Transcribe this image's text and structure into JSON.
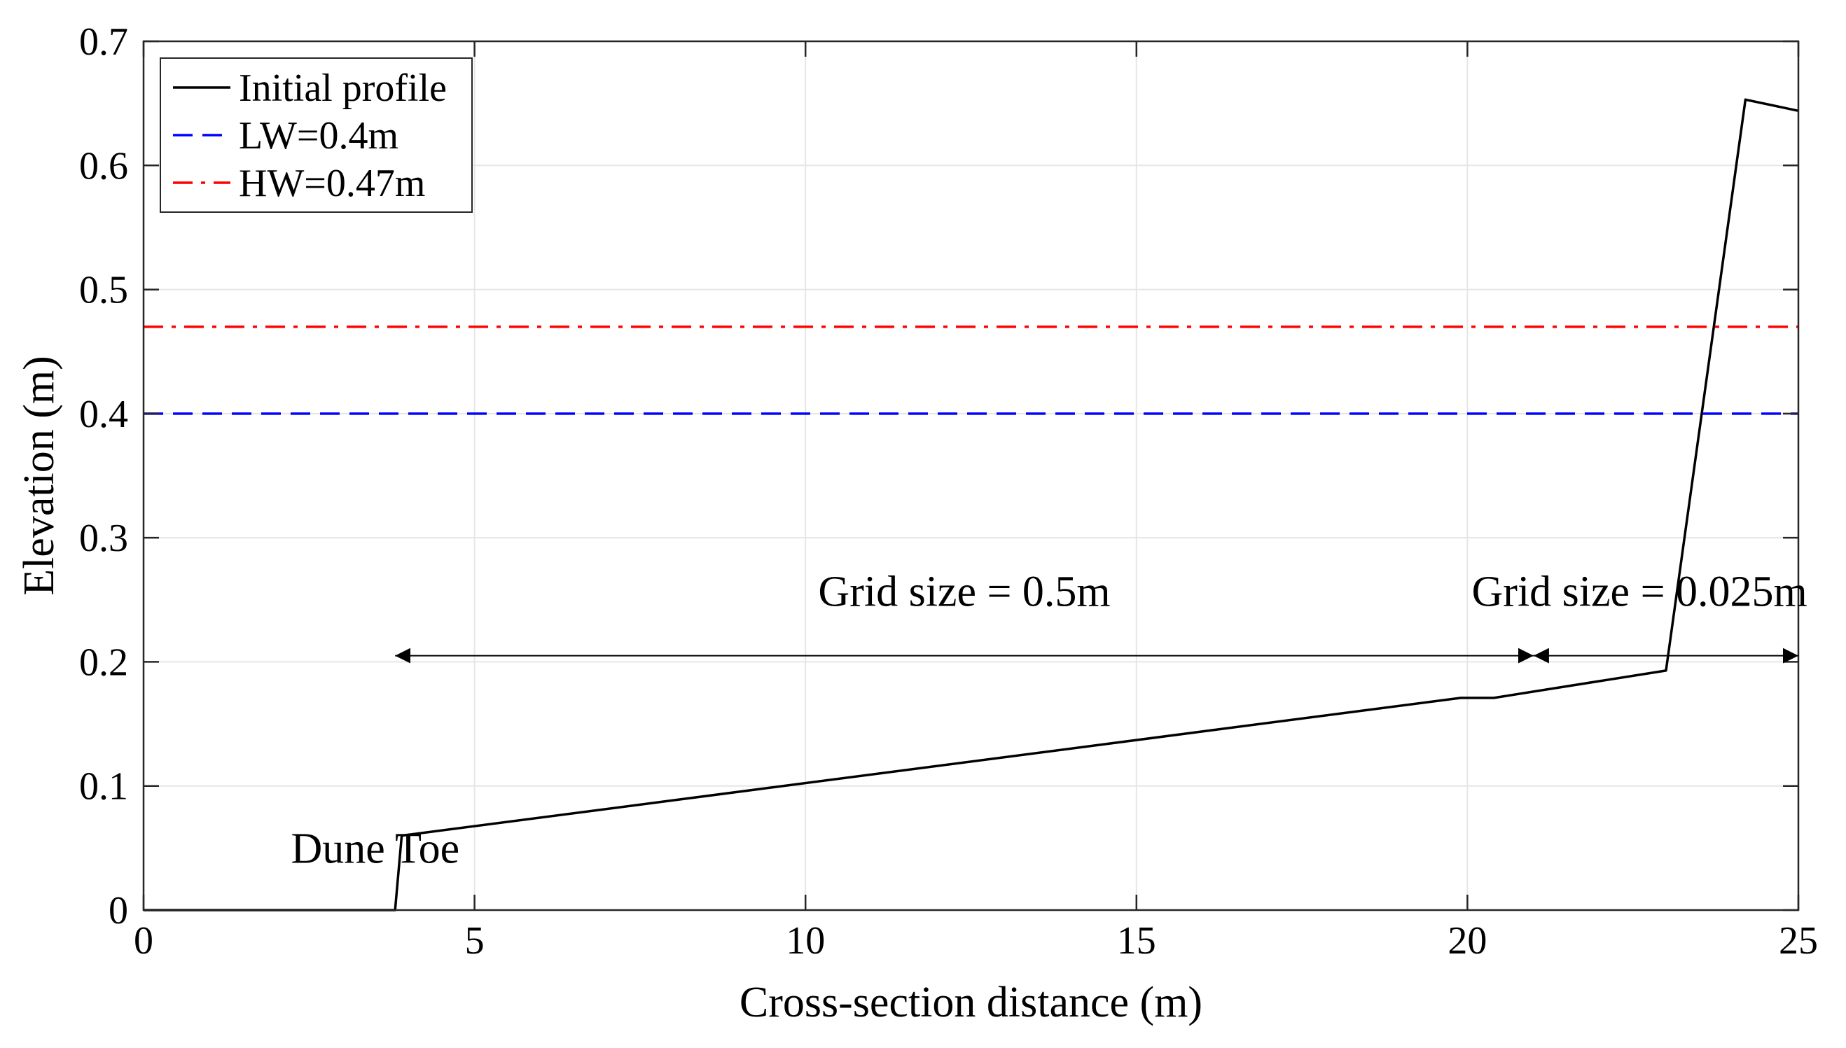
{
  "chart_data": {
    "type": "line",
    "title": "",
    "xlabel": "Cross-section distance (m)",
    "ylabel": "Elevation (m)",
    "xlim": [
      0,
      25
    ],
    "ylim": [
      0,
      0.7
    ],
    "xticks": [
      0,
      5,
      10,
      15,
      20,
      25
    ],
    "xtick_labels": [
      "0",
      "5",
      "10",
      "15",
      "20",
      "25"
    ],
    "yticks": [
      0,
      0.1,
      0.2,
      0.3,
      0.4,
      0.5,
      0.6,
      0.7
    ],
    "ytick_labels": [
      "0",
      "0.1",
      "0.2",
      "0.3",
      "0.4",
      "0.5",
      "0.6",
      "0.7"
    ],
    "grid": true,
    "legend_position": "top-left",
    "series": [
      {
        "name": "Initial profile",
        "style": "solid",
        "color": "#000000",
        "x": [
          0,
          3.8,
          3.9,
          19.9,
          20.4,
          23.0,
          24.2,
          25
        ],
        "y": [
          0,
          0,
          0.06,
          0.171,
          0.171,
          0.193,
          0.653,
          0.644
        ]
      },
      {
        "name": "LW=0.4m",
        "style": "dashed",
        "color": "#0000ff",
        "x": [
          0,
          25
        ],
        "y": [
          0.4,
          0.4
        ]
      },
      {
        "name": "HW=0.47m",
        "style": "dashdot",
        "color": "#ff0000",
        "x": [
          0,
          25
        ],
        "y": [
          0.47,
          0.47
        ]
      }
    ],
    "annotations": [
      {
        "text": "Grid size = 0.5m",
        "label_x": 12.4,
        "label_y": 0.245,
        "arrow_from": 3.8,
        "arrow_to": 21.0,
        "arrow_y": 0.205
      },
      {
        "text": "Grid size = 0.025m",
        "label_x": 22.6,
        "label_y": 0.245,
        "arrow_from": 21.0,
        "arrow_to": 25.0,
        "arrow_y": 0.205
      },
      {
        "text": "Dune Toe",
        "label_x": 3.5,
        "label_y": 0.038
      }
    ]
  }
}
